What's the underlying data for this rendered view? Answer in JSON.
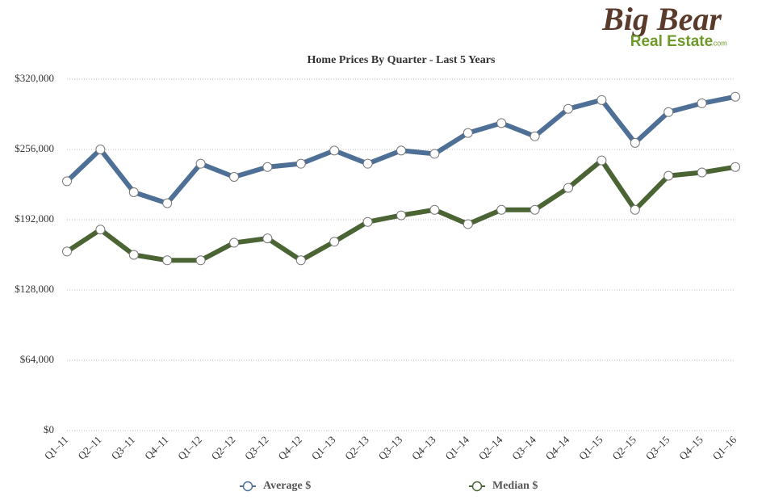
{
  "logo": {
    "line1": "Big Bear",
    "line2": "Real Estate",
    "suffix": ".com"
  },
  "chart_data": {
    "type": "line",
    "title": "Home Prices By Quarter - Last 5 Years",
    "categories": [
      "Q1–11",
      "Q2–11",
      "Q3–11",
      "Q4–11",
      "Q1–12",
      "Q2–12",
      "Q3–12",
      "Q4–12",
      "Q1–13",
      "Q2–13",
      "Q3–13",
      "Q4–13",
      "Q1–14",
      "Q2–14",
      "Q3–14",
      "Q4–14",
      "Q1–15",
      "Q2–15",
      "Q3–15",
      "Q4–15",
      "Q1–16"
    ],
    "series": [
      {
        "name": "Average $",
        "color": "#4e7096",
        "values": [
          227000,
          256000,
          217000,
          207000,
          243000,
          231000,
          240000,
          243000,
          255000,
          243000,
          255000,
          252000,
          271000,
          280000,
          268000,
          293000,
          301000,
          262000,
          290000,
          298000,
          304000
        ]
      },
      {
        "name": "Median $",
        "color": "#4a6434",
        "values": [
          163000,
          183000,
          160000,
          155000,
          155000,
          171000,
          175000,
          155000,
          172000,
          190000,
          196000,
          201000,
          188000,
          201000,
          201000,
          221000,
          246000,
          201000,
          232000,
          235000,
          240000
        ]
      }
    ],
    "ylim": [
      0,
      320000
    ],
    "yticks": [
      {
        "value": 0,
        "label": "$0"
      },
      {
        "value": 64000,
        "label": "$64,000"
      },
      {
        "value": 128000,
        "label": "$128,000"
      },
      {
        "value": 192000,
        "label": "$192,000"
      },
      {
        "value": 256000,
        "label": "$256,000"
      },
      {
        "value": 320000,
        "label": "$320,000"
      }
    ],
    "grid": true,
    "legend": "bottom"
  }
}
